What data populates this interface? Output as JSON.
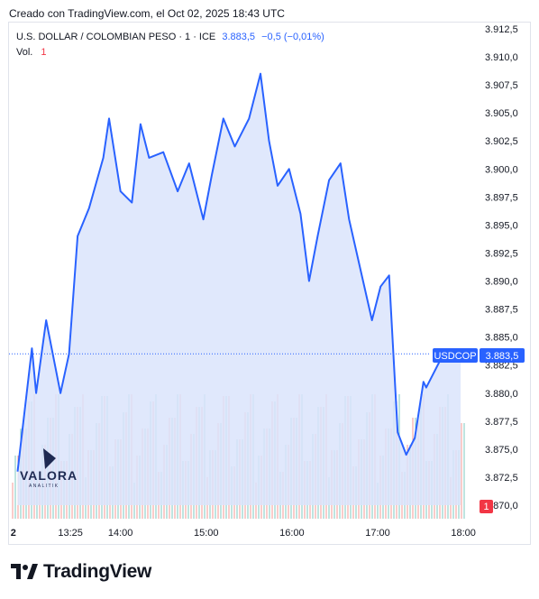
{
  "header": {
    "caption": "Creado con TradingView.com, el Oct 02, 2025 18:43 UTC"
  },
  "legend": {
    "symbol": "U.S. DOLLAR / COLOMBIAN PESO · 1 · ICE",
    "last": "3.883,5",
    "change": "−0,5 (−0,01%)",
    "vol_label": "Vol.",
    "vol_value": "1"
  },
  "badges": {
    "ticker": "USDCOP",
    "last_price": "3.883,5",
    "volume": "1"
  },
  "watermark": {
    "brand": "VALORA",
    "tagline": "ANALITIK"
  },
  "footer": {
    "brand": "TradingView"
  },
  "colors": {
    "line": "#2962ff",
    "fill": "#dbe4fb",
    "vol_up": "#26a69a",
    "vol_down": "#ef5350",
    "badge": "#2962ff",
    "vol_badge": "#f23645"
  },
  "chart_data": {
    "type": "area",
    "series": [
      {
        "name": "USDCOP",
        "x": [
          "12:48",
          "12:58",
          "13:01",
          "13:08",
          "13:18",
          "13:24",
          "13:30",
          "13:38",
          "13:48",
          "13:52",
          "14:00",
          "14:08",
          "14:14",
          "14:20",
          "14:30",
          "14:40",
          "14:48",
          "14:58",
          "15:04",
          "15:12",
          "15:20",
          "15:30",
          "15:38",
          "15:44",
          "15:50",
          "15:58",
          "16:06",
          "16:12",
          "16:18",
          "16:26",
          "16:34",
          "16:40",
          "16:48",
          "16:56",
          "17:02",
          "17:08",
          "17:14",
          "17:20",
          "17:26",
          "17:32",
          "17:34",
          "17:38",
          "17:44",
          "17:50",
          "17:58"
        ],
        "y": [
          3873.0,
          3884.0,
          3880.0,
          3886.5,
          3880.0,
          3883.5,
          3894.0,
          3896.5,
          3901.0,
          3904.5,
          3898.0,
          3897.0,
          3904.0,
          3901.0,
          3901.5,
          3898.0,
          3900.5,
          3895.5,
          3899.5,
          3904.5,
          3902.0,
          3904.5,
          3908.5,
          3902.5,
          3898.5,
          3900.0,
          3896.0,
          3890.0,
          3894.0,
          3899.0,
          3900.5,
          3895.5,
          3891.0,
          3886.5,
          3889.5,
          3890.5,
          3876.5,
          3874.5,
          3876.0,
          3881.0,
          3880.5,
          3881.5,
          3883.0,
          3883.0,
          3883.5
        ]
      }
    ],
    "x_ticks": [
      "2",
      "13:25",
      "14:00",
      "15:00",
      "16:00",
      "17:00",
      "18:00"
    ],
    "y_ticks": [
      "3.912,5",
      "3.910,0",
      "3.907,5",
      "3.905,0",
      "3.902,5",
      "3.900,0",
      "3.897,5",
      "3.895,0",
      "3.892,5",
      "3.890,0",
      "3.887,5",
      "3.885,0",
      "3.882,5",
      "3.880,0",
      "3.877,5",
      "3.875,0",
      "3.872,5",
      "3.870,0"
    ],
    "y_range": [
      3870,
      3912.5
    ],
    "x_range": [
      "12:42",
      "18:10"
    ],
    "volume": {
      "unit": "count",
      "values_up_down": "alternating",
      "max": 1
    },
    "grid": false
  }
}
